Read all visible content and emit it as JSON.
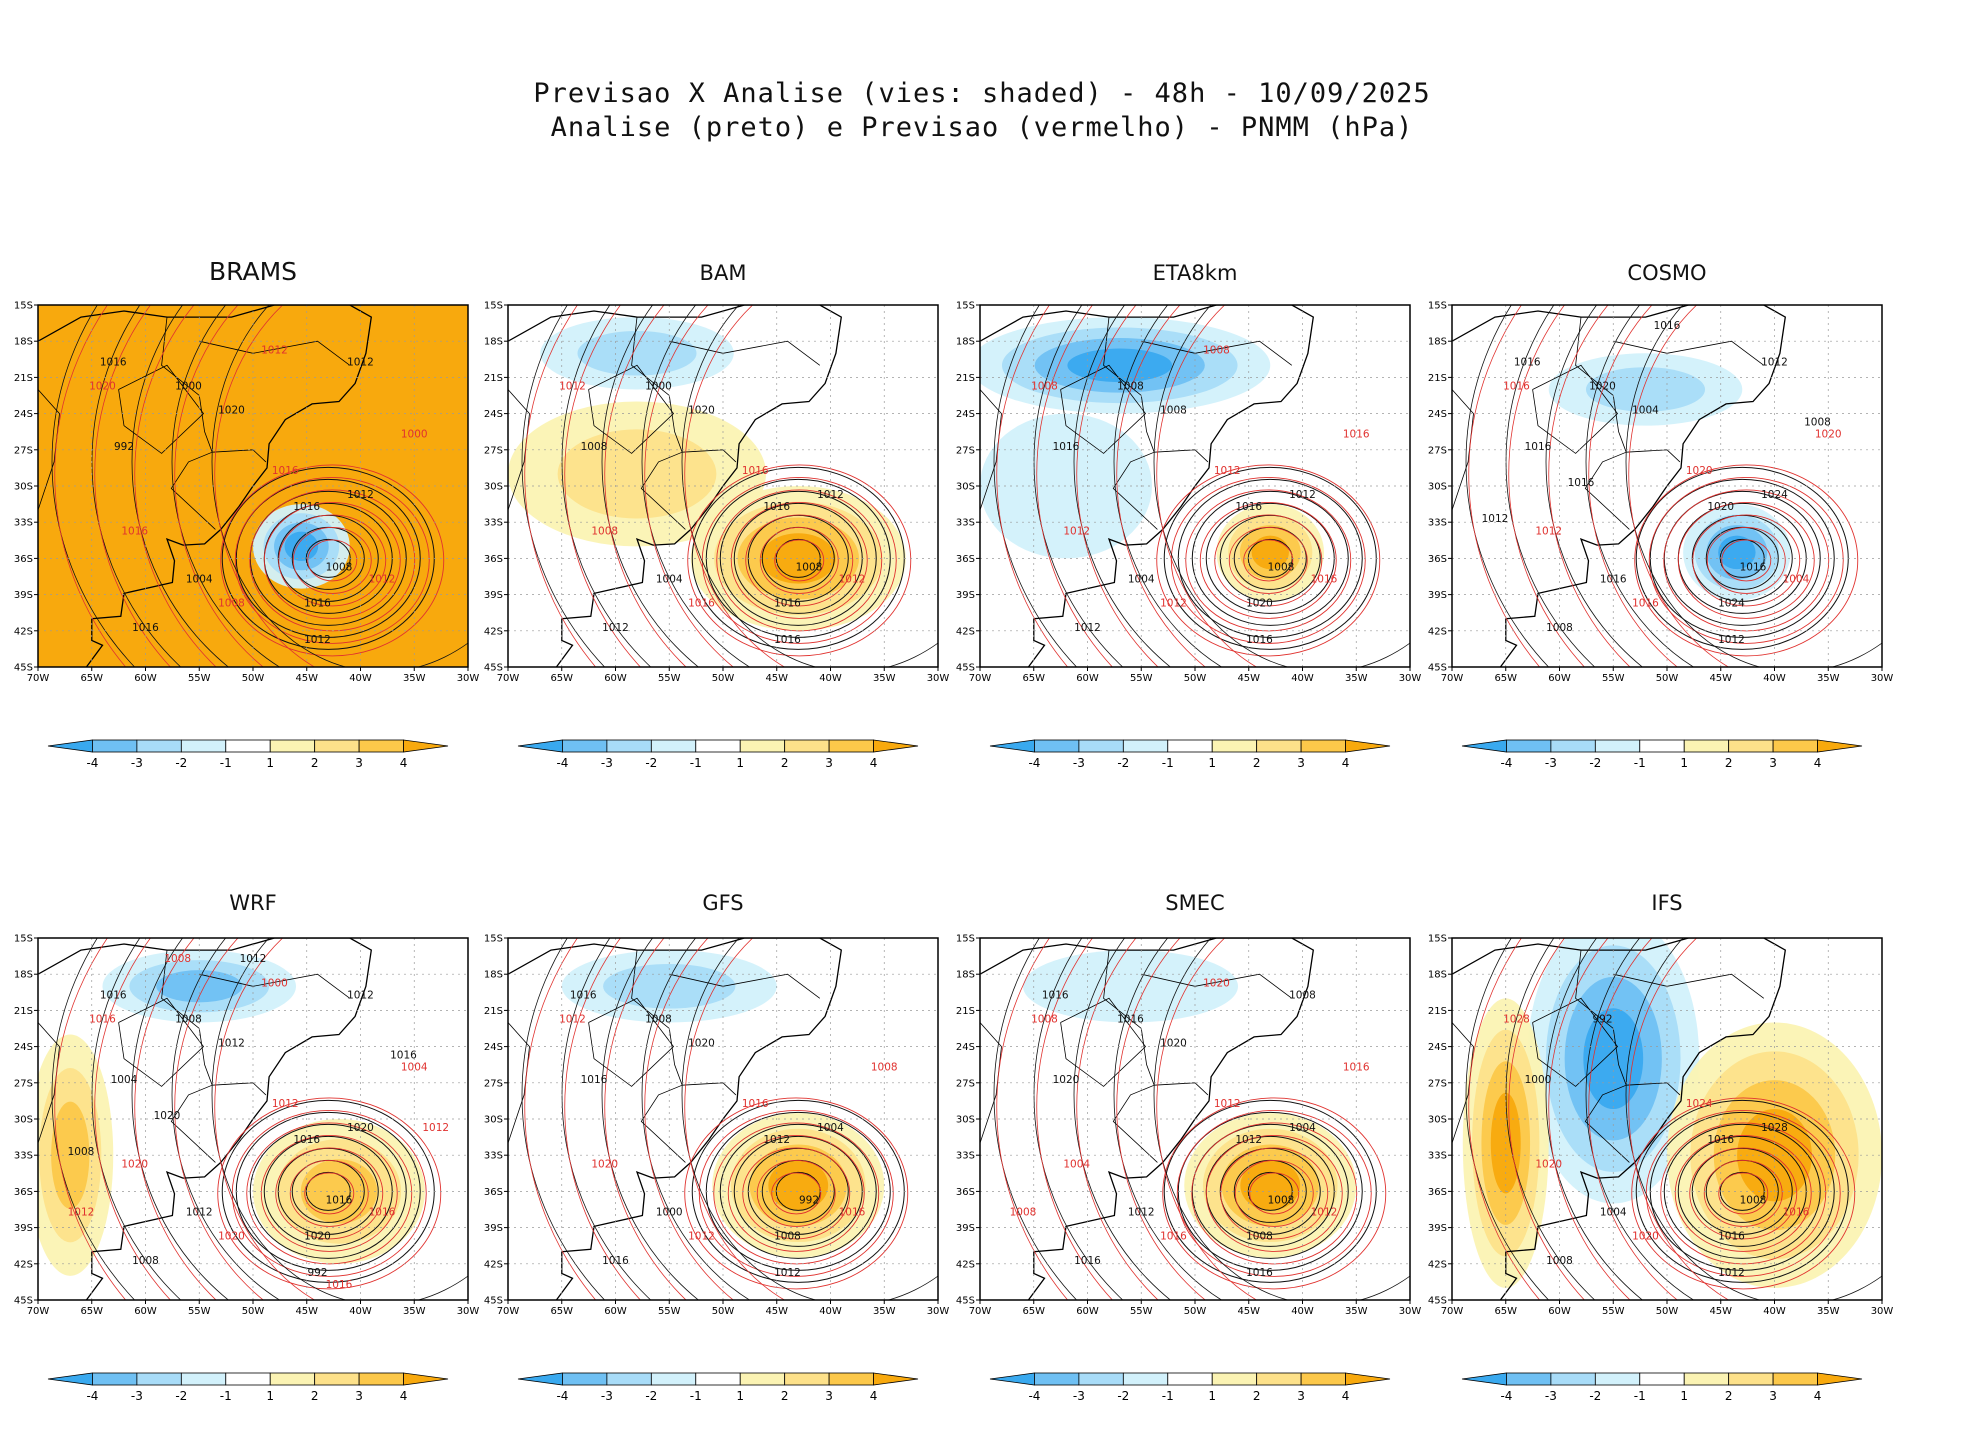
{
  "page": {
    "title_line1": "Previsao X Analise (vies: shaded) - 48h - 10/09/2025",
    "title_line2": "Analise (preto) e Previsao (vermelho) - PNMM (hPa)"
  },
  "colors": {
    "neg4": "#39a9ef",
    "neg3": "#6fc0f3",
    "neg2": "#a8dcf8",
    "neg1": "#d2f1fb",
    "neutral": "#ffffff",
    "pos1": "#fbf3b3",
    "pos2": "#fde18a",
    "pos3": "#fcc84a",
    "pos4": "#f8a90d",
    "analysis_contour": "#111111",
    "forecast_contour": "#e0322f",
    "grid": "#9a9a9a"
  },
  "chart_data": {
    "type": "heatmap",
    "variable": "PNMM (hPa)",
    "lead_time": "48h",
    "date": "10/09/2025",
    "lon_range": [
      -70,
      -30
    ],
    "lat_range": [
      -45,
      -15
    ],
    "x_ticks": [
      "70W",
      "65W",
      "60W",
      "55W",
      "50W",
      "45W",
      "40W",
      "35W",
      "30W"
    ],
    "y_ticks": [
      "15S",
      "18S",
      "21S",
      "24S",
      "27S",
      "30S",
      "33S",
      "36S",
      "39S",
      "42S",
      "45S"
    ],
    "colorbar": {
      "levels": [
        -4,
        -3,
        -2,
        -1,
        1,
        2,
        3,
        4
      ],
      "labels": [
        "-4",
        "-3",
        "-2",
        "-1",
        "1",
        "2",
        "3",
        "4"
      ],
      "colors": [
        "#39a9ef",
        "#6fc0f3",
        "#a8dcf8",
        "#d2f1fb",
        "#ffffff",
        "#fbf3b3",
        "#fde18a",
        "#fcc84a",
        "#f8a90d"
      ]
    },
    "low_center": {
      "lon": -43,
      "lat": -36,
      "analysis_min_hPa": 992
    },
    "panels": [
      {
        "model": "BRAMS",
        "bias_background": 4,
        "bias_blobs": [
          {
            "lon": -45.5,
            "lat": -35,
            "rlon": 4.5,
            "rlat": 3.5,
            "value": -4
          }
        ],
        "labels_analysis": [
          "1016",
          "1016",
          "1012",
          "1008",
          "1004",
          "1000",
          "992",
          "1012",
          "1016",
          "1020",
          "1016",
          "1012"
        ],
        "labels_forecast": [
          "1016",
          "1020",
          "1016",
          "1012",
          "1008",
          "1000",
          "1012"
        ]
      },
      {
        "model": "BAM",
        "bias_background": 0,
        "bias_blobs": [
          {
            "lon": -43,
            "lat": -36,
            "rlon": 10,
            "rlat": 6,
            "value": 4
          },
          {
            "lon": -58,
            "lat": -29,
            "rlon": 12,
            "rlat": 6,
            "value": 2
          },
          {
            "lon": -58,
            "lat": -19,
            "rlon": 9,
            "rlat": 3,
            "value": -2
          }
        ],
        "labels_analysis": [
          "1016",
          "1016",
          "1012",
          "1008",
          "1004",
          "1000",
          "1008",
          "1016",
          "1012",
          "1020"
        ],
        "labels_forecast": [
          "1016",
          "1012",
          "1008",
          "1012",
          "1016"
        ]
      },
      {
        "model": "ETA8km",
        "bias_background": 0,
        "bias_blobs": [
          {
            "lon": -43,
            "lat": -35.5,
            "rlon": 5,
            "rlat": 4,
            "value": 4
          },
          {
            "lon": -57,
            "lat": -20,
            "rlon": 14,
            "rlat": 4,
            "value": -4
          },
          {
            "lon": -62,
            "lat": -30,
            "rlon": 8,
            "rlat": 6,
            "value": -1
          }
        ],
        "labels_analysis": [
          "1016",
          "1020",
          "1012",
          "1008",
          "1004",
          "1008",
          "1016",
          "1016",
          "1012",
          "1008"
        ],
        "labels_forecast": [
          "1012",
          "1008",
          "1012",
          "1016",
          "1012",
          "1016",
          "1008"
        ]
      },
      {
        "model": "COSMO",
        "bias_background": 0,
        "bias_blobs": [
          {
            "lon": -43.5,
            "lat": -35.5,
            "rlon": 5,
            "rlat": 4,
            "value": -4
          },
          {
            "lon": -52,
            "lat": -22,
            "rlon": 9,
            "rlat": 3,
            "value": -2
          }
        ],
        "labels_analysis": [
          "1020",
          "1024",
          "1024",
          "1016",
          "1016",
          "1020",
          "1016",
          "1012",
          "1008",
          "1004",
          "1016",
          "1012",
          "1016",
          "1012",
          "1016",
          "1008"
        ],
        "labels_forecast": [
          "1020",
          "1016",
          "1012",
          "1004",
          "1016",
          "1020"
        ]
      },
      {
        "model": "WRF",
        "bias_background": 0,
        "bias_blobs": [
          {
            "lon": -42,
            "lat": -36,
            "rlon": 8,
            "rlat": 6,
            "value": 3
          },
          {
            "lon": -55,
            "lat": -19,
            "rlon": 9,
            "rlat": 3,
            "value": -3
          },
          {
            "lon": -67,
            "lat": -33,
            "rlon": 4,
            "rlat": 10,
            "value": 3
          }
        ],
        "labels_analysis": [
          "1016",
          "1020",
          "1020",
          "1016",
          "1012",
          "1008",
          "1004",
          "992",
          "1008",
          "1012",
          "1016",
          "1012",
          "1020",
          "1008",
          "1012",
          "1016"
        ],
        "labels_forecast": [
          "1012",
          "1016",
          "1020",
          "1016",
          "1020",
          "1004",
          "1000",
          "1012",
          "1016",
          "1008",
          "1012"
        ]
      },
      {
        "model": "GFS",
        "bias_background": 0,
        "bias_blobs": [
          {
            "lon": -43,
            "lat": -35.5,
            "rlon": 8,
            "rlat": 6,
            "value": 4
          },
          {
            "lon": -55,
            "lat": -19,
            "rlon": 10,
            "rlat": 3,
            "value": -2
          }
        ],
        "labels_analysis": [
          "1012",
          "1008",
          "1004",
          "992",
          "1000",
          "1008",
          "1016",
          "1012",
          "1016",
          "1020",
          "1016"
        ],
        "labels_forecast": [
          "1016",
          "1012",
          "1020",
          "1016",
          "1012",
          "1008"
        ]
      },
      {
        "model": "SMEC",
        "bias_background": 0,
        "bias_blobs": [
          {
            "lon": -43,
            "lat": -35.5,
            "rlon": 8,
            "rlat": 6,
            "value": 4
          },
          {
            "lon": -56,
            "lat": -19,
            "rlon": 10,
            "rlat": 3,
            "value": -1
          }
        ],
        "labels_analysis": [
          "1012",
          "1008",
          "1004",
          "1008",
          "1012",
          "1016",
          "1020",
          "1016",
          "1016",
          "1020",
          "1016",
          "1008"
        ],
        "labels_forecast": [
          "1012",
          "1008",
          "1004",
          "1012",
          "1016",
          "1016",
          "1020",
          "1008"
        ]
      },
      {
        "model": "IFS",
        "bias_background": 0,
        "bias_blobs": [
          {
            "lon": -55,
            "lat": -25,
            "rlon": 8,
            "rlat": 12,
            "value": -4
          },
          {
            "lon": -40,
            "lat": -33,
            "rlon": 10,
            "rlat": 11,
            "value": 4
          },
          {
            "lon": -65,
            "lat": -32,
            "rlon": 4,
            "rlat": 12,
            "value": 4
          }
        ],
        "labels_analysis": [
          "1016",
          "1016",
          "1028",
          "1008",
          "1004",
          "992",
          "1000",
          "1012",
          "1008"
        ],
        "labels_forecast": [
          "1024",
          "1028",
          "1020",
          "1016",
          "1020"
        ]
      }
    ]
  }
}
